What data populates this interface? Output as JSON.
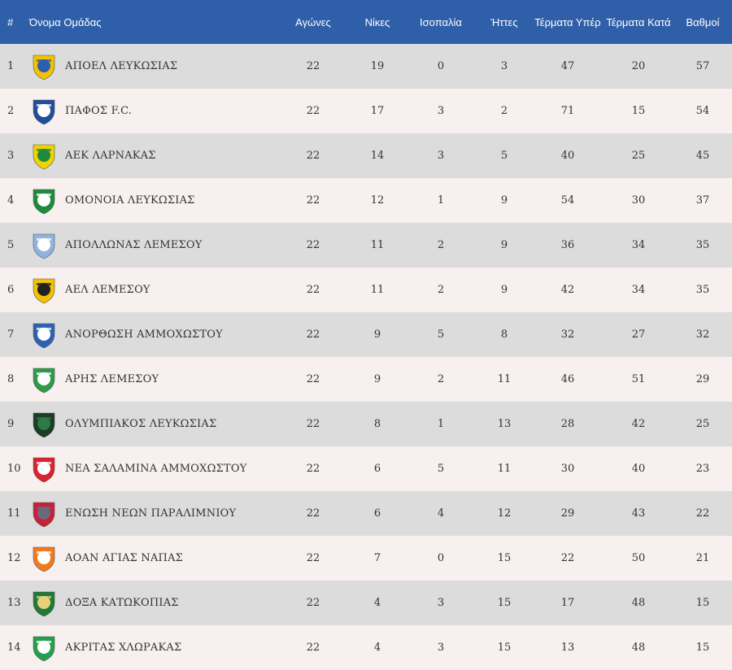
{
  "columns": {
    "rank": "#",
    "team": "Όνομα Ομάδας",
    "played": "Αγώνες",
    "wins": "Νίκες",
    "draws": "Ισοπαλία",
    "losses": "Ήττες",
    "goals_for": "Τέρματα Υπέρ",
    "goals_against": "Τέρματα Κατά",
    "points": "Βαθμοί"
  },
  "rows": [
    {
      "rank": "1",
      "team": "ΑΠΟΕΛ ΛΕΥΚΩΣΙΑΣ",
      "logo_icon": "apoel-crest-icon",
      "logo_color": "#f2c200",
      "logo_color2": "#2b5fb3",
      "played": "22",
      "wins": "19",
      "draws": "0",
      "losses": "3",
      "goals_for": "47",
      "goals_against": "20",
      "points": "57"
    },
    {
      "rank": "2",
      "team": "ΠΑΦΟΣ F.C.",
      "logo_icon": "pafos-crest-icon",
      "logo_color": "#1f4e9c",
      "logo_color2": "#ffffff",
      "played": "22",
      "wins": "17",
      "draws": "3",
      "losses": "2",
      "goals_for": "71",
      "goals_against": "15",
      "points": "54"
    },
    {
      "rank": "3",
      "team": "ΑΕΚ ΛΑΡΝΑΚΑΣ",
      "logo_icon": "aek-crest-icon",
      "logo_color": "#f2d200",
      "logo_color2": "#1f8a3b",
      "played": "22",
      "wins": "14",
      "draws": "3",
      "losses": "5",
      "goals_for": "40",
      "goals_against": "25",
      "points": "45"
    },
    {
      "rank": "4",
      "team": "ΟΜΟΝΟΙΑ ΛΕΥΚΩΣΙΑΣ",
      "logo_icon": "omonoia-crest-icon",
      "logo_color": "#1e8a3c",
      "logo_color2": "#ffffff",
      "played": "22",
      "wins": "12",
      "draws": "1",
      "losses": "9",
      "goals_for": "54",
      "goals_against": "30",
      "points": "37"
    },
    {
      "rank": "5",
      "team": "ΑΠΟΛΛΩΝΑΣ ΛΕΜΕΣΟΥ",
      "logo_icon": "apollon-crest-icon",
      "logo_color": "#8fb4e0",
      "logo_color2": "#ffffff",
      "played": "22",
      "wins": "11",
      "draws": "2",
      "losses": "9",
      "goals_for": "36",
      "goals_against": "34",
      "points": "35"
    },
    {
      "rank": "6",
      "team": "ΑΕΛ ΛΕΜΕΣΟΥ",
      "logo_icon": "ael-crest-icon",
      "logo_color": "#f2c200",
      "logo_color2": "#222222",
      "played": "22",
      "wins": "11",
      "draws": "2",
      "losses": "9",
      "goals_for": "42",
      "goals_against": "34",
      "points": "35"
    },
    {
      "rank": "7",
      "team": "ΑΝΟΡΘΩΣΗ ΑΜΜΟΧΩΣΤΟΥ",
      "logo_icon": "anorthosis-crest-icon",
      "logo_color": "#2a63b3",
      "logo_color2": "#ffffff",
      "played": "22",
      "wins": "9",
      "draws": "5",
      "losses": "8",
      "goals_for": "32",
      "goals_against": "27",
      "points": "32"
    },
    {
      "rank": "8",
      "team": "ΑΡΗΣ ΛΕΜΕΣΟΥ",
      "logo_icon": "aris-crest-icon",
      "logo_color": "#2e9a4a",
      "logo_color2": "#ffffff",
      "played": "22",
      "wins": "9",
      "draws": "2",
      "losses": "11",
      "goals_for": "46",
      "goals_against": "51",
      "points": "29"
    },
    {
      "rank": "9",
      "team": "ΟΛΥΜΠΙΑΚΟΣ ΛΕΥΚΩΣΙΑΣ",
      "logo_icon": "olympiakos-crest-icon",
      "logo_color": "#1a3d24",
      "logo_color2": "#2f7a45",
      "played": "22",
      "wins": "8",
      "draws": "1",
      "losses": "13",
      "goals_for": "28",
      "goals_against": "42",
      "points": "25"
    },
    {
      "rank": "10",
      "team": "ΝΕΑ ΣΑΛΑΜΙΝΑ ΑΜΜΟΧΩΣΤΟΥ",
      "logo_icon": "nea-salamina-crest-icon",
      "logo_color": "#d9232e",
      "logo_color2": "#ffffff",
      "played": "22",
      "wins": "6",
      "draws": "5",
      "losses": "11",
      "goals_for": "30",
      "goals_against": "40",
      "points": "23"
    },
    {
      "rank": "11",
      "team": "ΕΝΩΣΗ ΝΕΩΝ ΠΑΡΑΛΙΜΝΙΟΥ",
      "logo_icon": "enp-crest-icon",
      "logo_color": "#c9203a",
      "logo_color2": "#6a6a7a",
      "played": "22",
      "wins": "6",
      "draws": "4",
      "losses": "12",
      "goals_for": "29",
      "goals_against": "43",
      "points": "22"
    },
    {
      "rank": "12",
      "team": "ΑΟΑΝ ΑΓΙΑΣ ΝΑΠΑΣ",
      "logo_icon": "aoan-crest-icon",
      "logo_color": "#f07a1e",
      "logo_color2": "#ffffff",
      "played": "22",
      "wins": "7",
      "draws": "0",
      "losses": "15",
      "goals_for": "22",
      "goals_against": "50",
      "points": "21"
    },
    {
      "rank": "13",
      "team": "ΔΟΞΑ ΚΑΤΩΚΟΠΙΑΣ",
      "logo_icon": "doxa-crest-icon",
      "logo_color": "#1f7a3a",
      "logo_color2": "#e6d27a",
      "played": "22",
      "wins": "4",
      "draws": "3",
      "losses": "15",
      "goals_for": "17",
      "goals_against": "48",
      "points": "15"
    },
    {
      "rank": "14",
      "team": "ΑΚΡΙΤΑΣ ΧΛΩΡΑΚΑΣ",
      "logo_icon": "akritas-crest-icon",
      "logo_color": "#22a04a",
      "logo_color2": "#ffffff",
      "played": "22",
      "wins": "4",
      "draws": "3",
      "losses": "15",
      "goals_for": "13",
      "goals_against": "48",
      "points": "15"
    }
  ],
  "colors": {
    "header_bg": "#2f5fa8",
    "row_odd": "#dcdcdc",
    "row_even": "#f8efef",
    "text": "#333333"
  }
}
